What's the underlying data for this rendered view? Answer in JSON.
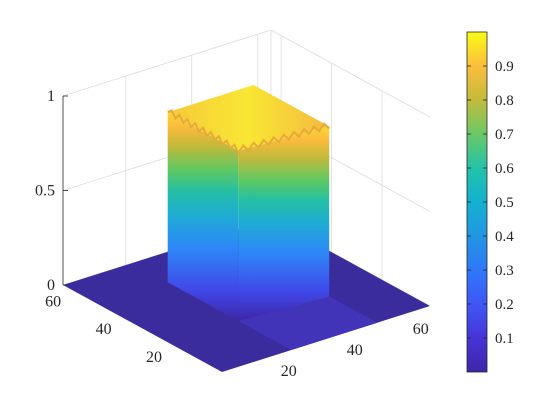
{
  "chart_data": {
    "type": "surface",
    "title": "",
    "xlabel": "",
    "ylabel": "",
    "zlabel": "",
    "x_range": [
      1,
      64
    ],
    "y_range": [
      1,
      64
    ],
    "z_range": [
      0,
      1
    ],
    "x_ticks": [
      "20",
      "40",
      "60"
    ],
    "y_ticks": [
      "20",
      "40",
      "60"
    ],
    "z_ticks": [
      "0",
      "0.5",
      "1"
    ],
    "grid": true,
    "colormap": "parula",
    "colorbar": {
      "placement": "right",
      "range": [
        0,
        1
      ],
      "ticks": [
        "0.1",
        "0.2",
        "0.3",
        "0.4",
        "0.5",
        "0.6",
        "0.7",
        "0.8",
        "0.9"
      ]
    },
    "surface": {
      "shape": "L-shaped plateau on a zero-valued plane",
      "x_extent": [
        1,
        64
      ],
      "y_extent": [
        1,
        64
      ],
      "plateau_top_value": 0.9,
      "floor_value": 0
    }
  }
}
